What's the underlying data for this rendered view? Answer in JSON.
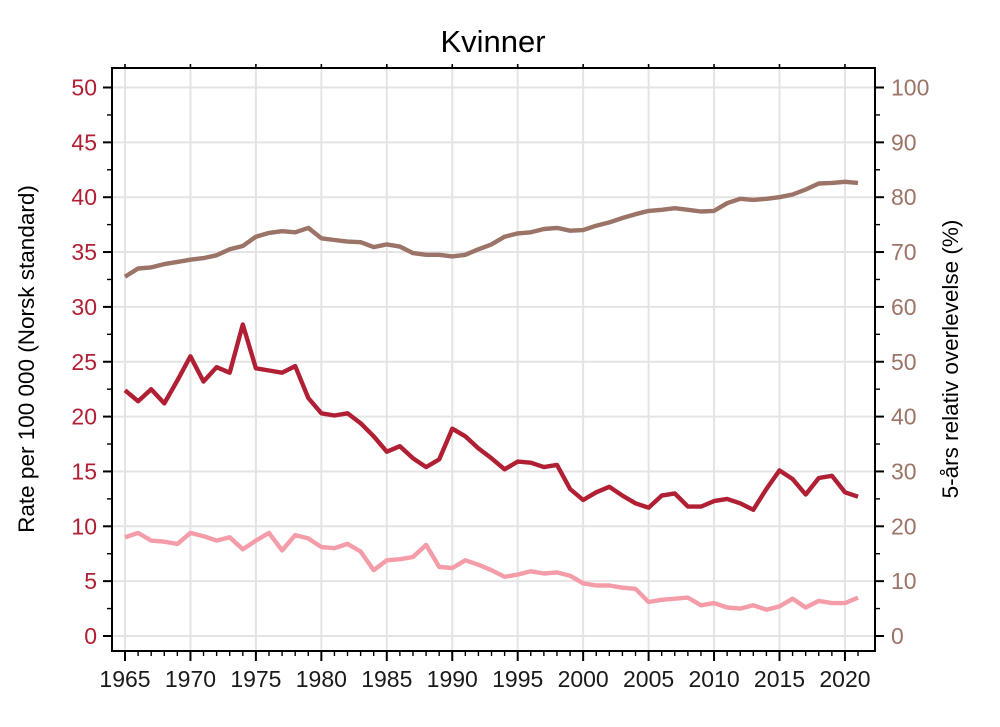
{
  "title": "Kvinner",
  "chart_data": {
    "type": "line",
    "title": "Kvinner",
    "grid": true,
    "legend": "none",
    "x": [
      1965,
      1966,
      1967,
      1968,
      1969,
      1970,
      1971,
      1972,
      1973,
      1974,
      1975,
      1976,
      1977,
      1978,
      1979,
      1980,
      1981,
      1982,
      1983,
      1984,
      1985,
      1986,
      1987,
      1988,
      1989,
      1990,
      1991,
      1992,
      1993,
      1994,
      1995,
      1996,
      1997,
      1998,
      1999,
      2000,
      2001,
      2002,
      2003,
      2004,
      2005,
      2006,
      2007,
      2008,
      2009,
      2010,
      2011,
      2012,
      2013,
      2014,
      2015,
      2016,
      2017,
      2018,
      2019,
      2020,
      2021
    ],
    "series": [
      {
        "name": "rate-dark-red",
        "axis": "left",
        "color": "#b01f33",
        "values": [
          22.4,
          21.4,
          22.5,
          21.2,
          23.3,
          25.5,
          23.2,
          24.5,
          24.0,
          28.4,
          24.4,
          24.2,
          24.0,
          24.6,
          21.7,
          20.3,
          20.1,
          20.3,
          19.4,
          18.2,
          16.8,
          17.3,
          16.2,
          15.4,
          16.1,
          18.9,
          18.2,
          17.1,
          16.2,
          15.2,
          15.9,
          15.8,
          15.4,
          15.6,
          13.4,
          12.4,
          13.1,
          13.6,
          12.8,
          12.1,
          11.7,
          12.8,
          13.0,
          11.8,
          11.8,
          12.3,
          12.5,
          12.1,
          11.5,
          13.4,
          15.1,
          14.3,
          12.9,
          14.4,
          14.6,
          13.1,
          12.7
        ]
      },
      {
        "name": "rate-pink",
        "axis": "left",
        "color": "#f49ca8",
        "values": [
          9.0,
          9.4,
          8.7,
          8.6,
          8.4,
          9.4,
          9.1,
          8.7,
          9.0,
          7.9,
          8.7,
          9.4,
          7.8,
          9.2,
          8.9,
          8.1,
          8.0,
          8.4,
          7.7,
          6.0,
          6.9,
          7.0,
          7.2,
          8.3,
          6.3,
          6.2,
          6.9,
          6.5,
          6.0,
          5.4,
          5.6,
          5.9,
          5.7,
          5.8,
          5.5,
          4.8,
          4.6,
          4.6,
          4.4,
          4.3,
          3.1,
          3.3,
          3.4,
          3.5,
          2.8,
          3.0,
          2.6,
          2.5,
          2.8,
          2.4,
          2.7,
          3.4,
          2.6,
          3.2,
          3.0,
          3.0,
          3.5
        ]
      },
      {
        "name": "survival-brown",
        "axis": "right",
        "color": "#9b7367",
        "values": [
          65.5,
          67.0,
          67.2,
          67.8,
          68.2,
          68.6,
          68.9,
          69.4,
          70.5,
          71.1,
          72.8,
          73.5,
          73.8,
          73.6,
          74.4,
          72.5,
          72.2,
          71.9,
          71.8,
          70.9,
          71.4,
          71.0,
          69.8,
          69.5,
          69.5,
          69.2,
          69.5,
          70.5,
          71.4,
          72.8,
          73.4,
          73.6,
          74.2,
          74.4,
          73.9,
          74.0,
          74.8,
          75.4,
          76.2,
          76.9,
          77.5,
          77.7,
          78.0,
          77.7,
          77.4,
          77.5,
          78.9,
          79.7,
          79.5,
          79.7,
          80.0,
          80.5,
          81.4,
          82.5,
          82.6,
          82.8,
          82.6
        ]
      }
    ],
    "left_axis": {
      "label": "Rate per 100 000 (Norsk standard)",
      "range": [
        0,
        50
      ],
      "major_tick_step": 5,
      "minor_tick_step": 2.5,
      "tick_labels": [
        "0",
        "5",
        "10",
        "15",
        "20",
        "25",
        "30",
        "35",
        "40",
        "45",
        "50"
      ],
      "tick_color": "#b01f33"
    },
    "right_axis": {
      "label": "5-års relativ overlevelse (%)",
      "range": [
        0,
        100
      ],
      "major_tick_step": 10,
      "minor_tick_step": 5,
      "tick_labels": [
        "0",
        "10",
        "20",
        "30",
        "40",
        "50",
        "60",
        "70",
        "80",
        "90",
        "100"
      ],
      "tick_color": "#9b7367"
    },
    "x_axis": {
      "major_tick_years": [
        1965,
        1970,
        1975,
        1980,
        1985,
        1990,
        1995,
        2000,
        2005,
        2010,
        2015,
        2020
      ],
      "minor_tick_step": 1,
      "tick_labels": [
        "1965",
        "1970",
        "1975",
        "1980",
        "1985",
        "1990",
        "1995",
        "2000",
        "2005",
        "2010",
        "2015",
        "2020"
      ],
      "tick_color": "#1a1a1a"
    }
  },
  "colors": {
    "background": "#ffffff",
    "grid": "#e4e4e4",
    "axis_line": "#000000",
    "title": "#000000",
    "axis_title": "#000000"
  }
}
